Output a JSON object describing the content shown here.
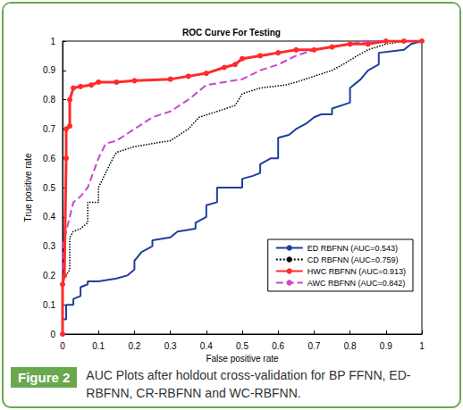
{
  "figure": {
    "label": "Figure 2",
    "caption": "AUC Plots after holdout cross-validation for BP FFNN, ED-RBFNN, CR-RBFNN and WC-RBFNN."
  },
  "chart_data": {
    "type": "line",
    "title": "ROC Curve For Testing",
    "x_label": "False positive rate",
    "y_label": "True positive rate",
    "xlim": [
      0,
      1
    ],
    "ylim": [
      0,
      1
    ],
    "xticks": [
      0,
      0.1,
      0.2,
      0.3,
      0.4,
      0.5,
      0.6,
      0.7,
      0.8,
      0.9,
      1
    ],
    "yticks": [
      0,
      0.1,
      0.2,
      0.3,
      0.4,
      0.5,
      0.6,
      0.7,
      0.8,
      0.9,
      1
    ],
    "grid": false,
    "legend": "lower right",
    "series": [
      {
        "name": "ED RBFNN (AUC=0.543)",
        "color": "#1f3e9e",
        "marker": "none",
        "line_style": "solid",
        "x": [
          0,
          0,
          0.01,
          0.01,
          0.03,
          0.03,
          0.05,
          0.05,
          0.07,
          0.07,
          0.1,
          0.15,
          0.18,
          0.2,
          0.2,
          0.22,
          0.25,
          0.25,
          0.3,
          0.32,
          0.37,
          0.37,
          0.4,
          0.4,
          0.43,
          0.43,
          0.5,
          0.5,
          0.53,
          0.55,
          0.55,
          0.58,
          0.6,
          0.6,
          0.63,
          0.65,
          0.68,
          0.7,
          0.72,
          0.75,
          0.75,
          0.8,
          0.8,
          0.83,
          0.85,
          0.88,
          0.88,
          0.95,
          0.97,
          1
        ],
        "values": [
          0,
          0.05,
          0.05,
          0.1,
          0.1,
          0.12,
          0.13,
          0.16,
          0.17,
          0.18,
          0.18,
          0.19,
          0.2,
          0.22,
          0.25,
          0.28,
          0.3,
          0.32,
          0.33,
          0.35,
          0.36,
          0.38,
          0.4,
          0.44,
          0.45,
          0.5,
          0.5,
          0.53,
          0.54,
          0.55,
          0.58,
          0.6,
          0.6,
          0.67,
          0.68,
          0.7,
          0.72,
          0.74,
          0.75,
          0.75,
          0.77,
          0.79,
          0.84,
          0.87,
          0.9,
          0.92,
          0.96,
          0.97,
          0.99,
          1
        ]
      },
      {
        "name": "CD RBFNN (AUC=0.759)",
        "color": "#000000",
        "marker": "none",
        "line_style": "dotted",
        "x": [
          0,
          0,
          0.01,
          0.02,
          0.02,
          0.03,
          0.05,
          0.07,
          0.07,
          0.1,
          0.1,
          0.12,
          0.14,
          0.15,
          0.2,
          0.3,
          0.35,
          0.38,
          0.43,
          0.48,
          0.5,
          0.55,
          0.62,
          0.65,
          0.7,
          0.75,
          0.78,
          0.82,
          0.85,
          0.9,
          0.95,
          1
        ],
        "values": [
          0,
          0.18,
          0.2,
          0.22,
          0.33,
          0.35,
          0.36,
          0.38,
          0.45,
          0.45,
          0.5,
          0.55,
          0.6,
          0.62,
          0.64,
          0.66,
          0.7,
          0.74,
          0.76,
          0.78,
          0.82,
          0.84,
          0.85,
          0.86,
          0.88,
          0.9,
          0.92,
          0.95,
          0.97,
          0.99,
          1,
          1
        ]
      },
      {
        "name": "HWC RBFNN (AUC=0.913)",
        "color": "#ff2a2a",
        "marker": "circle",
        "line_style": "solid",
        "x": [
          0,
          0,
          0.005,
          0.01,
          0.01,
          0.02,
          0.02,
          0.03,
          0.05,
          0.08,
          0.1,
          0.15,
          0.2,
          0.3,
          0.35,
          0.4,
          0.45,
          0.48,
          0.5,
          0.55,
          0.6,
          0.65,
          0.7,
          0.75,
          0.8,
          0.85,
          0.9,
          0.95,
          1
        ],
        "values": [
          0,
          0.17,
          0.2,
          0.6,
          0.7,
          0.71,
          0.8,
          0.84,
          0.845,
          0.85,
          0.86,
          0.86,
          0.865,
          0.87,
          0.88,
          0.89,
          0.91,
          0.92,
          0.94,
          0.95,
          0.96,
          0.97,
          0.97,
          0.98,
          0.99,
          0.99,
          1,
          1,
          1
        ]
      },
      {
        "name": "AWC RBFNN (AUC=0.842)",
        "color": "#cc44cc",
        "marker": "none",
        "line_style": "dashed",
        "x": [
          0,
          0,
          0.01,
          0.02,
          0.03,
          0.05,
          0.07,
          0.1,
          0.12,
          0.15,
          0.2,
          0.25,
          0.3,
          0.35,
          0.4,
          0.45,
          0.5,
          0.55,
          0.6,
          0.65,
          0.7,
          0.75,
          0.8,
          0.85,
          1
        ],
        "values": [
          0,
          0.3,
          0.35,
          0.4,
          0.45,
          0.47,
          0.5,
          0.6,
          0.65,
          0.66,
          0.7,
          0.74,
          0.76,
          0.8,
          0.85,
          0.86,
          0.87,
          0.9,
          0.92,
          0.95,
          0.97,
          0.98,
          0.99,
          1,
          1
        ]
      }
    ]
  }
}
